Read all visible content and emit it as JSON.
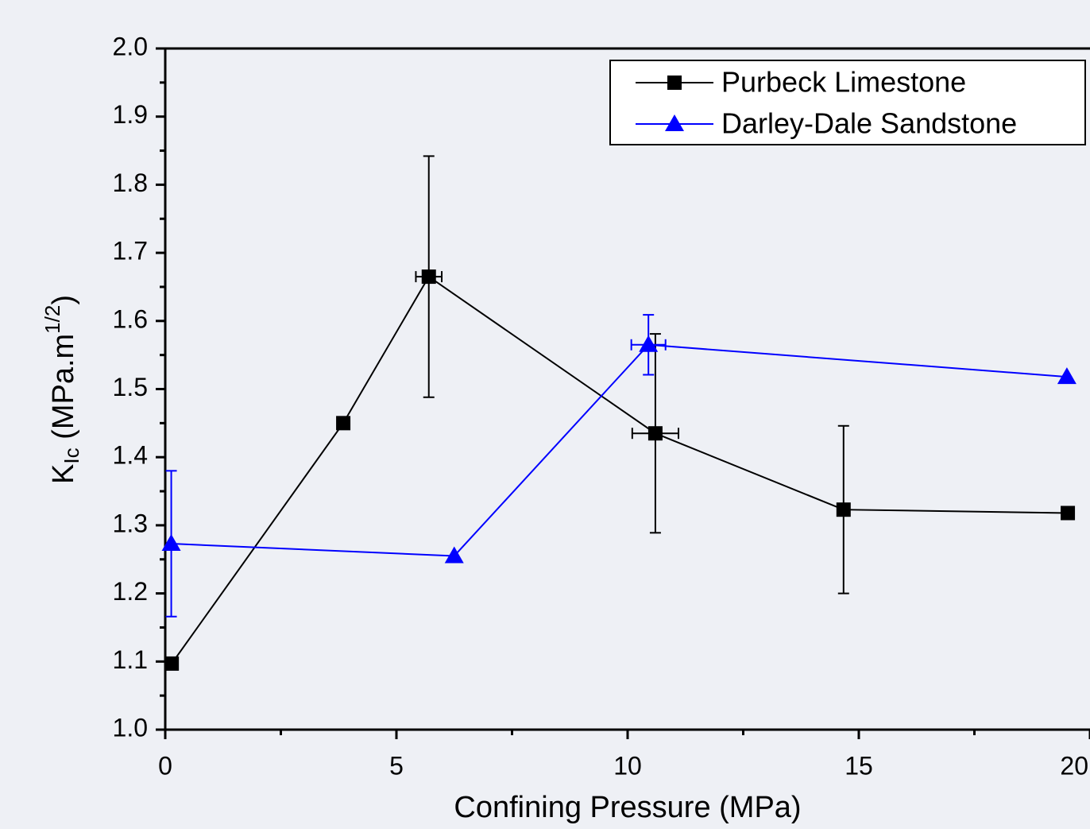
{
  "chart_data": {
    "type": "line",
    "xlabel": "Confining Pressure (MPa)",
    "ylabel": {
      "main": "K",
      "sub": "Ic",
      "rest": " (MPa.m",
      "sup": "1/2",
      "end": ")"
    },
    "xlim": [
      0,
      20
    ],
    "ylim": [
      1.0,
      2.0
    ],
    "xticks": [
      0,
      5,
      10,
      15,
      20
    ],
    "x_minor_ticks": [
      2.5,
      7.5,
      12.5,
      17.5
    ],
    "yticks": [
      {
        "value": 1.0,
        "label": "1.0"
      },
      {
        "value": 1.1,
        "label": "1.1"
      },
      {
        "value": 1.2,
        "label": "1.2"
      },
      {
        "value": 1.3,
        "label": "1.3"
      },
      {
        "value": 1.4,
        "label": "1.4"
      },
      {
        "value": 1.5,
        "label": "1.5"
      },
      {
        "value": 1.6,
        "label": "1.6"
      },
      {
        "value": 1.7,
        "label": "1.7"
      },
      {
        "value": 1.8,
        "label": "1.8"
      },
      {
        "value": 1.9,
        "label": "1.9"
      },
      {
        "value": 2.0,
        "label": "2.0"
      }
    ],
    "y_minor_ticks": [
      1.05,
      1.15,
      1.25,
      1.35,
      1.45,
      1.55,
      1.65,
      1.75,
      1.85,
      1.95
    ],
    "legend": "upper right",
    "series": [
      {
        "name": "Purbeck Limestone",
        "color": "#000000",
        "marker": "square",
        "x": [
          0.14,
          3.85,
          5.7,
          10.6,
          14.67,
          19.52
        ],
        "values": [
          1.097,
          1.45,
          1.665,
          1.435,
          1.323,
          1.318
        ],
        "yerr": [
          null,
          null,
          0.177,
          0.146,
          0.123,
          null
        ],
        "xerr": [
          null,
          null,
          0.28,
          0.5,
          null,
          null
        ]
      },
      {
        "name": "Darley-Dale Sandstone",
        "color": "#0000ff",
        "marker": "triangle",
        "x": [
          0.13,
          6.25,
          10.45,
          19.5
        ],
        "values": [
          1.273,
          1.255,
          1.565,
          1.518
        ],
        "yerr": [
          0.107,
          null,
          0.044,
          null
        ],
        "xerr": [
          null,
          null,
          0.37,
          null
        ]
      }
    ]
  }
}
